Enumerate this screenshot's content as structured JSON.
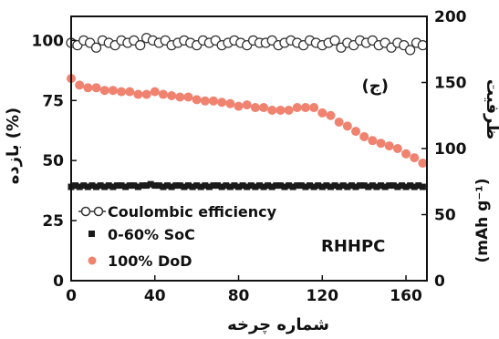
{
  "chart_data": {
    "type": "scatter",
    "xlabel": "شماره چرخه",
    "ylabel_left": "بازده  (%)",
    "ylabel_right": "ظرفیت",
    "ylabel_right_unit": "(mAh g⁻¹)",
    "xlim": [
      0,
      170
    ],
    "ylim_left": [
      0,
      110
    ],
    "ylim_right": [
      0,
      200
    ],
    "x_ticks": [
      "0",
      "40",
      "80",
      "120",
      "160"
    ],
    "y_left_ticks": [
      "0",
      "25",
      "50",
      "75",
      "100"
    ],
    "y_right_ticks": [
      "0",
      "50",
      "100",
      "150",
      "200"
    ],
    "annotations": {
      "panel": "(ج)",
      "sample": "RHHPC"
    },
    "legend": [
      "Coulombic efficiency",
      "0-60% SoC",
      "100% DoD"
    ],
    "series": [
      {
        "name": "Coulombic efficiency",
        "axis": "left",
        "marker": "open-circle",
        "color": "#333333",
        "x": [
          0,
          3,
          6,
          9,
          12,
          15,
          18,
          21,
          24,
          27,
          30,
          33,
          36,
          39,
          42,
          45,
          48,
          51,
          54,
          57,
          60,
          63,
          66,
          69,
          72,
          75,
          78,
          81,
          84,
          87,
          90,
          93,
          96,
          99,
          102,
          105,
          108,
          111,
          114,
          117,
          120,
          123,
          126,
          129,
          132,
          135,
          138,
          141,
          144,
          147,
          150,
          153,
          156,
          159,
          162,
          165,
          168
        ],
        "values": [
          99,
          98,
          100,
          99,
          97,
          100,
          99,
          98,
          100,
          99,
          100,
          98,
          101,
          100,
          99,
          100,
          98,
          99,
          100,
          99,
          98,
          100,
          99,
          100,
          98,
          99,
          100,
          99,
          98,
          100,
          99,
          99,
          100,
          98,
          99,
          100,
          99,
          98,
          100,
          99,
          98,
          99,
          100,
          97,
          99,
          98,
          100,
          99,
          100,
          98,
          99,
          97,
          99,
          98,
          96,
          99,
          98
        ]
      },
      {
        "name": "0-60% SoC",
        "axis": "right",
        "marker": "filled-square",
        "color": "#1a1a1a",
        "x": [
          0,
          2,
          4,
          6,
          8,
          10,
          12,
          14,
          16,
          18,
          20,
          22,
          24,
          26,
          28,
          30,
          32,
          34,
          36,
          38,
          40,
          42,
          44,
          46,
          48,
          50,
          52,
          54,
          56,
          58,
          60,
          62,
          64,
          66,
          68,
          70,
          72,
          74,
          76,
          78,
          80,
          82,
          84,
          86,
          88,
          90,
          92,
          94,
          96,
          98,
          100,
          102,
          104,
          106,
          108,
          110,
          112,
          114,
          116,
          118,
          120,
          122,
          124,
          126,
          128,
          130,
          132,
          134,
          136,
          138,
          140,
          142,
          144,
          146,
          148,
          150,
          152,
          154,
          156,
          158,
          160,
          162,
          164,
          166,
          168
        ],
        "values": [
          71,
          72,
          71,
          72,
          71,
          72,
          71,
          72,
          71,
          72,
          71,
          72,
          72,
          71,
          72,
          72,
          71,
          72,
          72,
          73,
          72,
          72,
          71,
          72,
          71,
          72,
          72,
          71,
          72,
          71,
          72,
          71,
          72,
          71,
          72,
          72,
          71,
          72,
          71,
          72,
          71,
          72,
          71,
          72,
          71,
          72,
          71,
          72,
          71,
          72,
          72,
          71,
          72,
          71,
          72,
          72,
          71,
          72,
          71,
          72,
          71,
          72,
          71,
          72,
          71,
          72,
          71,
          72,
          71,
          72,
          72,
          71,
          72,
          71,
          72,
          71,
          72,
          72,
          71,
          72,
          71,
          72,
          71,
          72,
          71
        ]
      },
      {
        "name": "100% DoD",
        "axis": "right",
        "marker": "filled-circle",
        "color": "#f08270",
        "x": [
          0,
          4,
          8,
          12,
          16,
          20,
          24,
          28,
          32,
          36,
          40,
          44,
          48,
          52,
          56,
          60,
          64,
          68,
          72,
          76,
          80,
          84,
          88,
          92,
          96,
          100,
          104,
          108,
          112,
          116,
          120,
          124,
          128,
          132,
          136,
          140,
          144,
          148,
          152,
          156,
          160,
          164,
          168
        ],
        "values": [
          153,
          148,
          146,
          146,
          144,
          144,
          143,
          143,
          141,
          141,
          143,
          141,
          140,
          139,
          139,
          137,
          136,
          136,
          135,
          134,
          132,
          133,
          131,
          131,
          129,
          129,
          129,
          131,
          131,
          131,
          127,
          125,
          120,
          117,
          113,
          109,
          106,
          104,
          102,
          100,
          96,
          93,
          89
        ]
      }
    ]
  }
}
